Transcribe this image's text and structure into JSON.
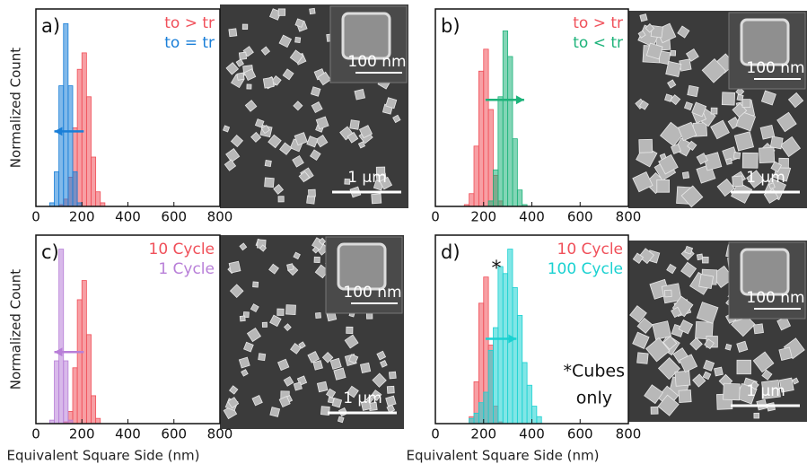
{
  "chart_data": [
    {
      "type": "histogram",
      "label": "a)",
      "ylabel": "Normalized Count",
      "xlim": [
        0,
        800
      ],
      "xticks": [
        0,
        200,
        400,
        600,
        800
      ],
      "ylim": [
        0,
        1.08
      ],
      "bins": [
        60,
        80,
        100,
        120,
        140,
        160,
        180,
        200,
        220,
        240,
        260,
        280,
        300,
        320,
        340,
        360,
        380,
        400,
        420,
        440
      ],
      "series": [
        {
          "name": "to > tr",
          "color": "#f0505a",
          "counts": [
            0,
            0,
            0.01,
            0.04,
            0.16,
            0.43,
            0.75,
            0.84,
            0.6,
            0.27,
            0.08,
            0.02,
            0,
            0,
            0,
            0,
            0,
            0,
            0
          ]
        },
        {
          "name": "to = tr",
          "color": "#1a7fd8",
          "counts": [
            0.02,
            0.19,
            0.66,
            1,
            0.66,
            0.19,
            0.02,
            0,
            0,
            0,
            0,
            0,
            0,
            0,
            0,
            0,
            0,
            0,
            0
          ]
        }
      ],
      "scale_bar": "1 μm",
      "inset_scale_bar": "100 nm"
    },
    {
      "type": "histogram",
      "label": "b)",
      "xlim": [
        0,
        800
      ],
      "xticks": [
        0,
        200,
        400,
        600,
        800
      ],
      "ylim": [
        0,
        1.08
      ],
      "bins": [
        60,
        80,
        100,
        120,
        140,
        160,
        180,
        200,
        220,
        240,
        260,
        280,
        300,
        320,
        340,
        360,
        380,
        400,
        420,
        440
      ],
      "series": [
        {
          "name": "to > tr",
          "color": "#f0505a",
          "counts": [
            0,
            0,
            0,
            0.01,
            0.07,
            0.33,
            0.74,
            0.86,
            0.53,
            0.17,
            0.03,
            0,
            0,
            0,
            0,
            0,
            0,
            0,
            0
          ]
        },
        {
          "name": "to < tr",
          "color": "#1db37a",
          "counts": [
            0,
            0,
            0,
            0,
            0,
            0,
            0,
            0,
            0.03,
            0.2,
            0.6,
            0.96,
            0.82,
            0.37,
            0.09,
            0.01,
            0,
            0,
            0
          ]
        }
      ],
      "scale_bar": "1 μm",
      "inset_scale_bar": "100 nm"
    },
    {
      "type": "histogram",
      "label": "c)",
      "ylabel": "Normalized Count",
      "xlabel": "Equivalent Square Side (nm)",
      "xlim": [
        0,
        800
      ],
      "xticks": [
        0,
        200,
        400,
        600,
        800
      ],
      "ylim": [
        0,
        1.08
      ],
      "bins": [
        60,
        80,
        100,
        120,
        140,
        160,
        180,
        200,
        220,
        240,
        260,
        280,
        300,
        320,
        340,
        360,
        380,
        400,
        420,
        440
      ],
      "series": [
        {
          "name": "10 Cycle",
          "color": "#f0505a",
          "counts": [
            0,
            0,
            0,
            0.01,
            0.07,
            0.32,
            0.71,
            0.82,
            0.51,
            0.16,
            0.03,
            0,
            0,
            0,
            0,
            0,
            0,
            0,
            0
          ]
        },
        {
          "name": "1 Cycle",
          "color": "#b87fd8",
          "counts": [
            0.02,
            0.36,
            1,
            0.36,
            0.02,
            0,
            0,
            0,
            0,
            0,
            0,
            0,
            0,
            0,
            0,
            0,
            0,
            0,
            0
          ]
        }
      ],
      "scale_bar": "1 μm",
      "inset_scale_bar": "100 nm"
    },
    {
      "type": "histogram",
      "label": "d)",
      "xlabel": "Equivalent Square Side (nm)",
      "xlim": [
        0,
        800
      ],
      "xticks": [
        0,
        200,
        400,
        600,
        800
      ],
      "ylim": [
        0,
        1.08
      ],
      "bins": [
        60,
        80,
        100,
        120,
        140,
        160,
        180,
        200,
        220,
        240,
        260,
        280,
        300,
        320,
        340,
        360,
        380,
        400,
        420,
        440
      ],
      "series": [
        {
          "name": "10 Cycle",
          "color": "#f0505a",
          "counts": [
            0,
            0,
            0,
            0,
            0.04,
            0.24,
            0.69,
            0.84,
            0.45,
            0.1,
            0.01,
            0,
            0,
            0,
            0,
            0,
            0,
            0,
            0
          ]
        },
        {
          "name": "100 Cycle",
          "color": "#1ad1d1",
          "counts": [
            0,
            0,
            0,
            0,
            0.03,
            0.06,
            0.12,
            0.18,
            0.42,
            0.55,
            0.9,
            0.86,
            1,
            0.78,
            0.62,
            0.35,
            0.22,
            0.1,
            0.04
          ]
        }
      ],
      "annotations": [
        "*",
        "*Cubes",
        "only"
      ],
      "scale_bar": "1 μm",
      "inset_scale_bar": "100 nm"
    }
  ]
}
